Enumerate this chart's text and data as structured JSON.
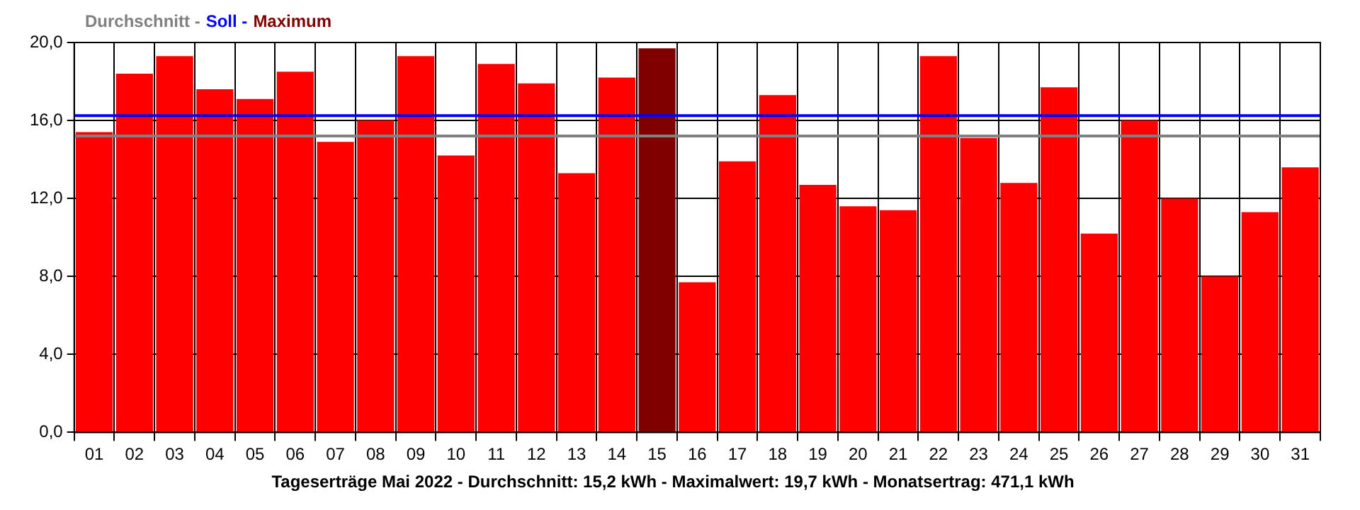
{
  "chart_data": {
    "type": "bar",
    "title": "Tageserträge Mai 2022 - Durchschnitt: 15,2 kWh - Maximalwert: 19,7 kWh - Monatsertrag: 471,1 kWh",
    "categories": [
      "01",
      "02",
      "03",
      "04",
      "05",
      "06",
      "07",
      "08",
      "09",
      "10",
      "11",
      "12",
      "13",
      "14",
      "15",
      "16",
      "17",
      "18",
      "19",
      "20",
      "21",
      "22",
      "23",
      "24",
      "25",
      "26",
      "27",
      "28",
      "29",
      "30",
      "31"
    ],
    "series": [
      {
        "color": "#ff0000",
        "values": [
          15.4,
          18.4,
          19.3,
          17.6,
          17.1,
          18.5,
          14.9,
          16.0,
          19.3,
          14.2,
          18.9,
          17.9,
          13.3,
          18.2,
          null,
          7.7,
          13.9,
          17.3,
          12.7,
          11.6,
          11.4,
          19.3,
          15.1,
          12.8,
          17.7,
          10.2,
          16.0,
          12.0,
          8.0,
          11.3,
          13.6
        ]
      },
      {
        "name": "Maximum",
        "color": "#800000",
        "values": [
          null,
          null,
          null,
          null,
          null,
          null,
          null,
          null,
          null,
          null,
          null,
          null,
          null,
          null,
          19.7,
          null,
          null,
          null,
          null,
          null,
          null,
          null,
          null,
          null,
          null,
          null,
          null,
          null,
          null,
          null,
          null
        ]
      }
    ],
    "ylim": [
      0,
      20
    ],
    "yticks": [
      {
        "value": 0,
        "label": "0,0"
      },
      {
        "value": 4,
        "label": "4,0"
      },
      {
        "value": 8,
        "label": "8,0"
      },
      {
        "value": 12,
        "label": "12,0"
      },
      {
        "value": 16,
        "label": "16,0"
      },
      {
        "value": 20,
        "label": "20,0"
      }
    ],
    "ref_lines": [
      {
        "axis": "y",
        "value": 15.2,
        "label": "Durchschnitt -",
        "color": "#808080"
      },
      {
        "axis": "y",
        "value": 16.25,
        "label": "Soll -",
        "color": "#0000ff"
      }
    ],
    "grid": true,
    "legend": "top left"
  }
}
